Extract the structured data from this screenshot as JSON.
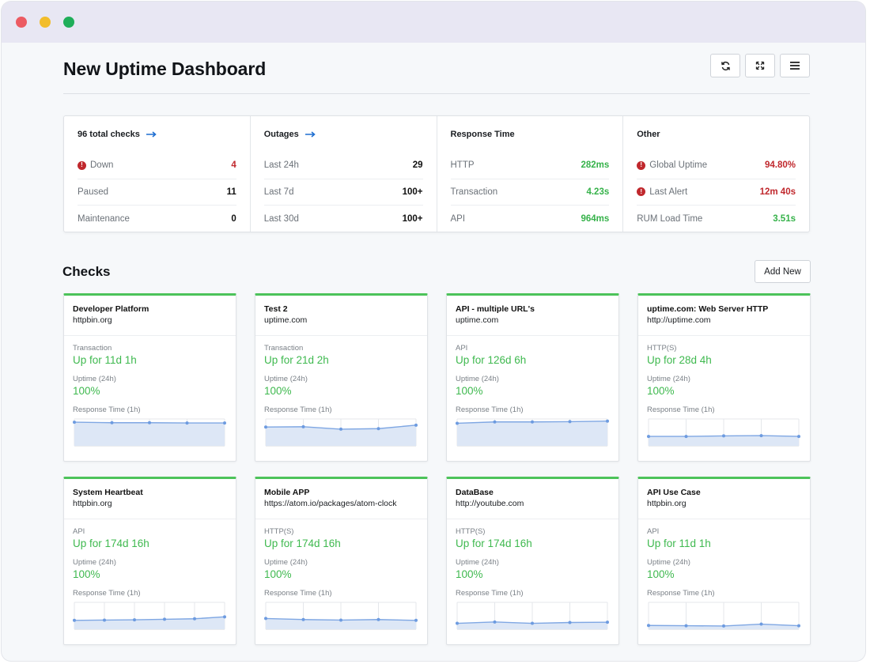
{
  "page": {
    "title": "New Uptime Dashboard",
    "toolbar": [
      {
        "icon": "refresh-icon"
      },
      {
        "icon": "fullscreen-icon"
      },
      {
        "icon": "menu-icon"
      }
    ]
  },
  "summary": [
    {
      "heading": "96 total checks",
      "arrow": true,
      "rows": [
        {
          "label": "Down",
          "value": "4",
          "alert": true,
          "tone": "red"
        },
        {
          "label": "Paused",
          "value": "11",
          "alert": false,
          "tone": "dark"
        },
        {
          "label": "Maintenance",
          "value": "0",
          "alert": false,
          "tone": "dark"
        }
      ]
    },
    {
      "heading": "Outages",
      "arrow": true,
      "rows": [
        {
          "label": "Last 24h",
          "value": "29",
          "alert": false,
          "tone": "dark"
        },
        {
          "label": "Last 7d",
          "value": "100+",
          "alert": false,
          "tone": "dark"
        },
        {
          "label": "Last 30d",
          "value": "100+",
          "alert": false,
          "tone": "dark"
        }
      ]
    },
    {
      "heading": "Response Time",
      "arrow": false,
      "rows": [
        {
          "label": "HTTP",
          "value": "282ms",
          "alert": false,
          "tone": "green"
        },
        {
          "label": "Transaction",
          "value": "4.23s",
          "alert": false,
          "tone": "green"
        },
        {
          "label": "API",
          "value": "964ms",
          "alert": false,
          "tone": "green"
        }
      ]
    },
    {
      "heading": "Other",
      "arrow": false,
      "rows": [
        {
          "label": "Global Uptime",
          "value": "94.80%",
          "alert": true,
          "tone": "red"
        },
        {
          "label": "Last Alert",
          "value": "12m 40s",
          "alert": true,
          "tone": "red"
        },
        {
          "label": "RUM Load Time",
          "value": "3.51s",
          "alert": false,
          "tone": "green"
        }
      ]
    }
  ],
  "checks_section": {
    "title": "Checks",
    "add_label": "Add New",
    "uptime_label": "Uptime (24h)",
    "response_label": "Response Time (1h)"
  },
  "checks": [
    {
      "name": "Developer Platform",
      "url": "httpbin.org",
      "type": "Transaction",
      "status": "Up for 11d 1h",
      "uptime": "100%",
      "response_series": [
        0.88,
        0.86,
        0.86,
        0.85,
        0.85
      ]
    },
    {
      "name": "Test 2",
      "url": "uptime.com",
      "type": "Transaction",
      "status": "Up for 21d 2h",
      "uptime": "100%",
      "response_series": [
        0.7,
        0.71,
        0.62,
        0.64,
        0.77
      ]
    },
    {
      "name": "API - multiple URL's",
      "url": "uptime.com",
      "type": "API",
      "status": "Up for 126d 6h",
      "uptime": "100%",
      "response_series": [
        0.84,
        0.89,
        0.89,
        0.9,
        0.92
      ]
    },
    {
      "name": "uptime.com: Web Server HTTP",
      "url": "http://uptime.com",
      "type": "HTTP(S)",
      "status": "Up for 28d 4h",
      "uptime": "100%",
      "response_series": [
        0.35,
        0.35,
        0.37,
        0.38,
        0.35
      ]
    },
    {
      "name": "System Heartbeat",
      "url": "httpbin.org",
      "type": "API",
      "status": "Up for 174d 16h",
      "uptime": "100%",
      "response_series": [
        0.33,
        0.34,
        0.35,
        0.37,
        0.39,
        0.46
      ]
    },
    {
      "name": "Mobile APP",
      "url": "https://atom.io/packages/atom-clock",
      "type": "HTTP(S)",
      "status": "Up for 174d 16h",
      "uptime": "100%",
      "response_series": [
        0.4,
        0.36,
        0.34,
        0.36,
        0.33
      ]
    },
    {
      "name": "DataBase",
      "url": "http://youtube.com",
      "type": "HTTP(S)",
      "status": "Up for 174d 16h",
      "uptime": "100%",
      "response_series": [
        0.22,
        0.27,
        0.22,
        0.25,
        0.26
      ]
    },
    {
      "name": "API Use Case",
      "url": "httpbin.org",
      "type": "API",
      "status": "Up for 11d 1h",
      "uptime": "100%",
      "response_series": [
        0.14,
        0.13,
        0.12,
        0.19,
        0.13
      ]
    }
  ]
}
